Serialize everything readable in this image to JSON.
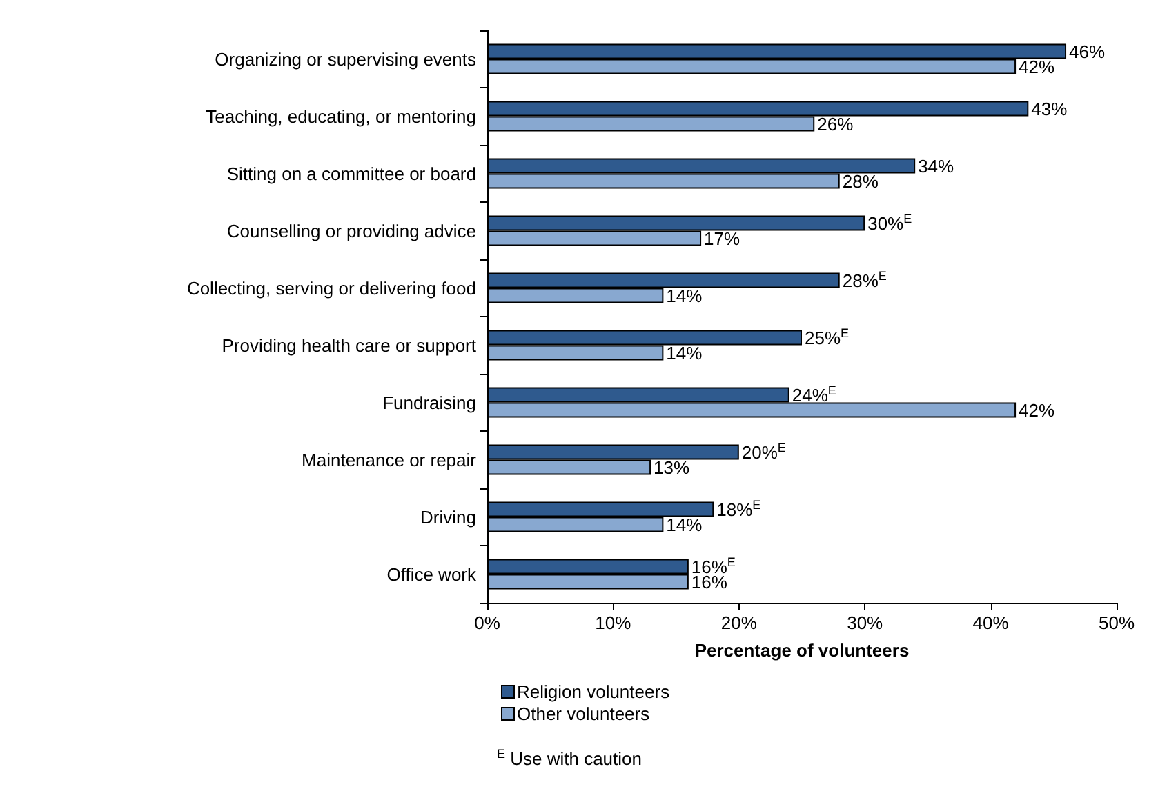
{
  "chart_data": {
    "type": "bar",
    "orientation": "horizontal",
    "categories": [
      "Organizing or supervising events",
      "Teaching, educating, or mentoring",
      "Sitting on a committee or board",
      "Counselling or providing advice",
      "Collecting, serving or delivering food",
      "Providing health care or support",
      "Fundraising",
      "Maintenance or repair",
      "Driving",
      "Office work"
    ],
    "series": [
      {
        "name": "Religion volunteers",
        "color": "#2f5a8e",
        "values": [
          46,
          43,
          34,
          30,
          28,
          25,
          24,
          20,
          18,
          16
        ],
        "value_labels": [
          "46%",
          "43%",
          "34%",
          "30%$^{E}$",
          "28%$^{E}$",
          "25%$^{E}$",
          "24%$^{E}$",
          "20%$^{E}$",
          "18%$^{E}$",
          "16%$^{E}$"
        ]
      },
      {
        "name": "Other volunteers",
        "color": "#88a8d0",
        "values": [
          42,
          26,
          28,
          17,
          14,
          14,
          42,
          13,
          14,
          16
        ],
        "value_labels": [
          "42%",
          "26%",
          "28%",
          "17%",
          "14%",
          "14%",
          "42%",
          "13%",
          "14%",
          "16%"
        ]
      }
    ],
    "xlabel": "Percentage of volunteers",
    "xlim": [
      0,
      50
    ],
    "xticks": [
      {
        "value": 0,
        "label": "0%"
      },
      {
        "value": 10,
        "label": "10%"
      },
      {
        "value": 20,
        "label": "20%"
      },
      {
        "value": 30,
        "label": "30%"
      },
      {
        "value": 40,
        "label": "40%"
      },
      {
        "value": 50,
        "label": "50%"
      }
    ],
    "grid": false,
    "legend": "bottom",
    "annotations": [
      "$^{E}$ Use with caution"
    ]
  }
}
